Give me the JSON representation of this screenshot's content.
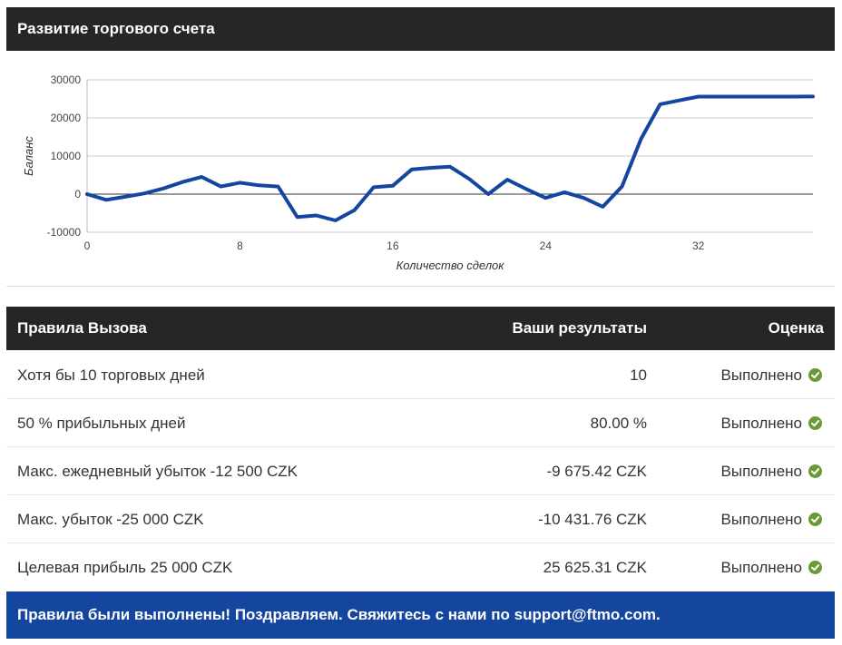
{
  "chart_header": {
    "title": "Развитие торгового счета"
  },
  "chart_data": {
    "type": "line",
    "title": "",
    "xlabel": "Количество сделок",
    "ylabel": "Баланс",
    "xlim": [
      0,
      38
    ],
    "ylim": [
      -10000,
      30000
    ],
    "x_ticks": [
      0,
      8,
      16,
      24,
      32
    ],
    "y_ticks": [
      -10000,
      0,
      10000,
      20000,
      30000
    ],
    "grid": true,
    "colors": {
      "line": "#1446a0"
    },
    "series": [
      {
        "x": [
          0,
          1,
          2,
          3,
          4,
          5,
          6,
          7,
          8,
          9,
          10,
          11,
          12,
          13,
          14,
          15,
          16,
          17,
          18,
          19,
          20,
          21,
          22,
          23,
          24,
          25,
          26,
          27,
          28,
          29,
          30,
          31,
          32,
          33,
          34,
          35,
          36,
          37,
          38
        ],
        "values": [
          0,
          -1500,
          -700,
          200,
          1500,
          3200,
          4500,
          2000,
          3000,
          2300,
          2000,
          -6000,
          -5600,
          -6900,
          -4200,
          1800,
          2200,
          6500,
          6900,
          7200,
          4000,
          0,
          3800,
          1300,
          -1000,
          500,
          -1000,
          -3300,
          2000,
          14500,
          23600,
          24600,
          25600,
          25600,
          25600,
          25600,
          25600,
          25600,
          25625
        ]
      }
    ]
  },
  "rules_header": {
    "col1": "Правила Вызова",
    "col2": "Ваши результаты",
    "col3": "Оценка"
  },
  "rules": [
    {
      "rule": "Хотя бы 10 торговых дней",
      "result": "10",
      "status": "Выполнено"
    },
    {
      "rule": "50 % прибыльных дней",
      "result": "80.00 %",
      "status": "Выполнено"
    },
    {
      "rule": "Макс. ежедневный убыток -12 500 CZK",
      "result": "-9 675.42 CZK",
      "status": "Выполнено"
    },
    {
      "rule": "Макс. убыток -25 000 CZK",
      "result": "-10 431.76 CZK",
      "status": "Выполнено"
    },
    {
      "rule": "Целевая прибыль 25 000 CZK",
      "result": "25 625.31 CZK",
      "status": "Выполнено"
    }
  ],
  "status_icon": {
    "name": "check-circle-icon",
    "color": "#6a9a34"
  },
  "footer": {
    "message": "Правила были выполнены! Поздравляем. Свяжитесь с нами по support@ftmo.com."
  }
}
